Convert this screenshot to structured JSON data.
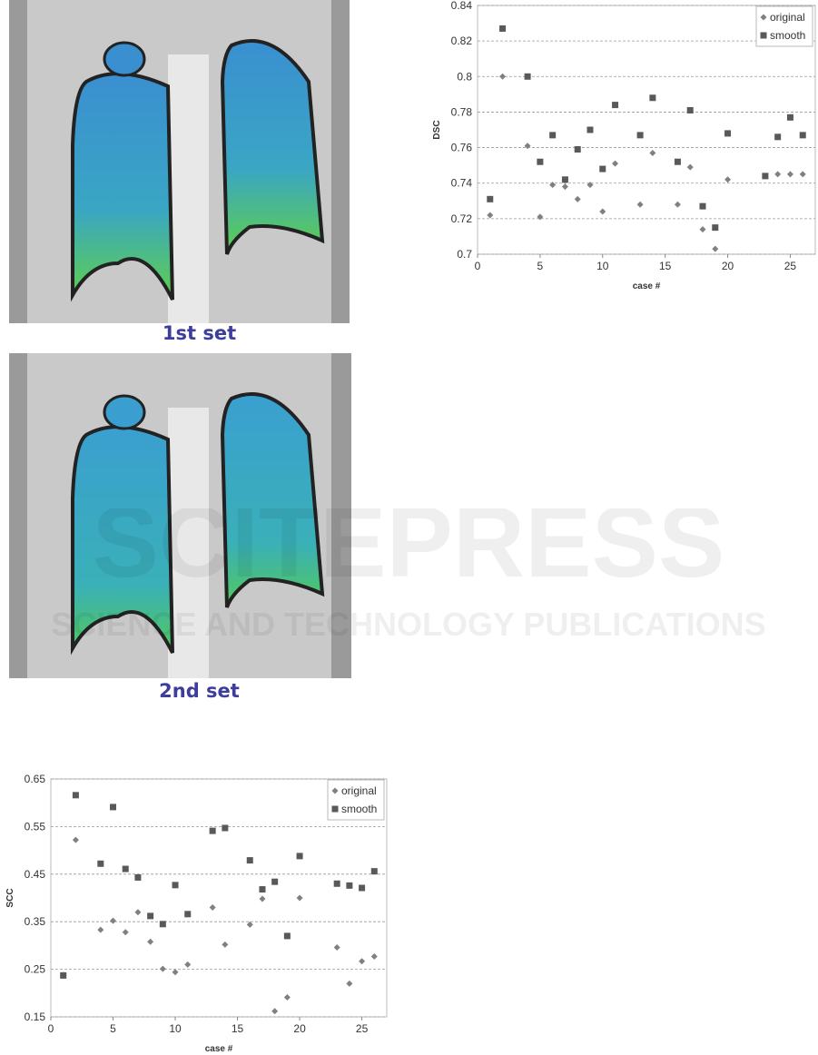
{
  "figures": [
    {
      "caption": "1st set"
    },
    {
      "caption": "2nd set"
    }
  ],
  "watermark": {
    "title": "SCITEPRESS",
    "subtitle": "SCIENCE AND TECHNOLOGY PUBLICATIONS"
  },
  "chart_data": [
    {
      "type": "scatter",
      "x_label": "case #",
      "y_label": "DSC",
      "x": [
        1,
        2,
        4,
        5,
        6,
        7,
        8,
        9,
        10,
        11,
        13,
        14,
        16,
        17,
        18,
        19,
        20,
        23,
        24,
        25,
        26
      ],
      "series": [
        {
          "name": "original",
          "color": "#808080",
          "marker": "diamond",
          "values": [
            0.722,
            0.8,
            0.761,
            0.721,
            0.739,
            0.738,
            0.731,
            0.739,
            0.724,
            0.751,
            0.728,
            0.757,
            0.728,
            0.749,
            0.714,
            0.703,
            0.742,
            0.744,
            0.745,
            0.745,
            0.745
          ]
        },
        {
          "name": "smooth",
          "color": "#595959",
          "marker": "square",
          "values": [
            0.731,
            0.827,
            0.8,
            0.752,
            0.767,
            0.742,
            0.759,
            0.77,
            0.748,
            0.784,
            0.767,
            0.788,
            0.752,
            0.781,
            0.727,
            0.715,
            0.768,
            0.744,
            0.766,
            0.777,
            0.767
          ]
        }
      ],
      "xlim": [
        0,
        27
      ],
      "xticks": [
        0,
        5,
        10,
        15,
        20,
        25
      ],
      "ylim": [
        0.7,
        0.84
      ],
      "yticks": [
        0.7,
        0.72,
        0.74,
        0.76,
        0.78,
        0.8,
        0.82,
        0.84
      ],
      "grid": true,
      "legend": "upper-right"
    },
    {
      "type": "scatter",
      "x_label": "case #",
      "y_label": "SCC",
      "x": [
        1,
        2,
        4,
        5,
        6,
        7,
        8,
        9,
        10,
        11,
        13,
        14,
        16,
        17,
        18,
        19,
        20,
        23,
        24,
        25,
        26
      ],
      "series": [
        {
          "name": "original",
          "color": "#808080",
          "marker": "diamond",
          "values": [
            0.238,
            0.522,
            0.333,
            0.352,
            0.328,
            0.37,
            0.308,
            0.251,
            0.244,
            0.26,
            0.38,
            0.302,
            0.344,
            0.398,
            0.162,
            0.191,
            0.4,
            0.296,
            0.22,
            0.267,
            0.277
          ]
        },
        {
          "name": "smooth",
          "color": "#595959",
          "marker": "square",
          "values": [
            0.237,
            0.616,
            0.472,
            0.591,
            0.461,
            0.443,
            0.362,
            0.345,
            0.427,
            0.366,
            0.541,
            0.547,
            0.479,
            0.418,
            0.434,
            0.32,
            0.488,
            0.43,
            0.426,
            0.421,
            0.456
          ]
        }
      ],
      "xlim": [
        0,
        27
      ],
      "xticks": [
        0,
        5,
        10,
        15,
        20,
        25
      ],
      "ylim": [
        0.15,
        0.65
      ],
      "yticks": [
        0.15,
        0.25,
        0.35,
        0.45,
        0.55,
        0.65
      ],
      "grid": true,
      "legend": "upper-right"
    }
  ]
}
